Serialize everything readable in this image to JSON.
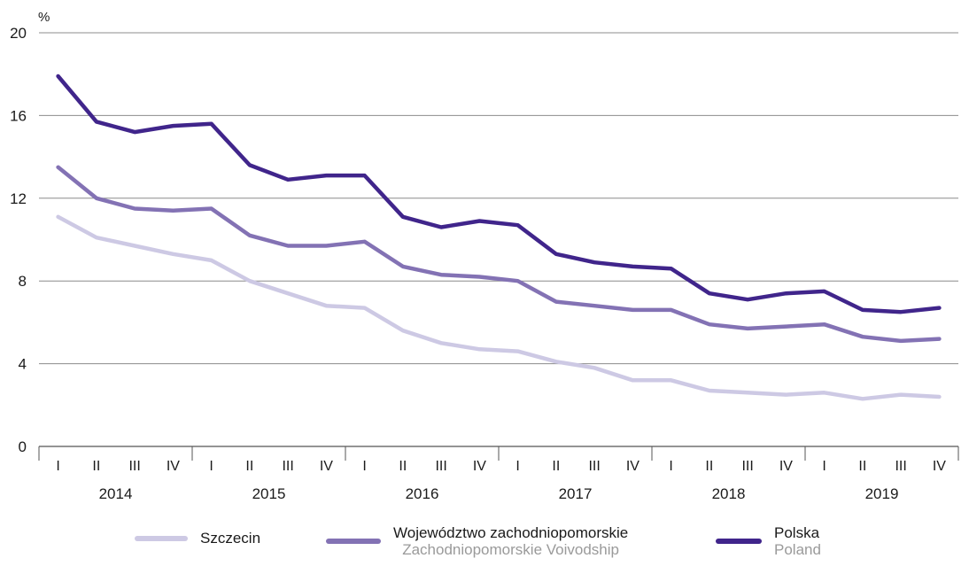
{
  "chart_data": {
    "type": "line",
    "y_unit": "%",
    "ylim": [
      0,
      20
    ],
    "yticks": [
      "0",
      "4",
      "8",
      "12",
      "16",
      "20"
    ],
    "grid": true,
    "legend_position": "bottom",
    "quarters": [
      "I",
      "II",
      "III",
      "IV",
      "I",
      "II",
      "III",
      "IV",
      "I",
      "II",
      "III",
      "IV",
      "I",
      "II",
      "III",
      "IV",
      "I",
      "II",
      "III",
      "IV",
      "I",
      "II",
      "III",
      "IV"
    ],
    "years": [
      "2014",
      "2015",
      "2016",
      "2017",
      "2018",
      "2019"
    ],
    "series": [
      {
        "name": "Szczecin",
        "color": "#cdc9e4",
        "values": [
          11.1,
          10.1,
          9.7,
          9.3,
          9.0,
          8.0,
          7.4,
          6.8,
          6.7,
          5.6,
          5.0,
          4.7,
          4.6,
          4.1,
          3.8,
          3.2,
          3.2,
          2.7,
          2.6,
          2.5,
          2.6,
          2.3,
          2.5,
          2.4
        ]
      },
      {
        "name": "Województwo zachodniopomorskie",
        "name_en": "Zachodniopomorskie Voivodship",
        "color": "#8372b4",
        "values": [
          13.5,
          12.0,
          11.5,
          11.4,
          11.5,
          10.2,
          9.7,
          9.7,
          9.9,
          8.7,
          8.3,
          8.2,
          8.0,
          7.0,
          6.8,
          6.6,
          6.6,
          5.9,
          5.7,
          5.8,
          5.9,
          5.3,
          5.1,
          5.2
        ]
      },
      {
        "name": "Polska",
        "name_en": "Poland",
        "color": "#40258b",
        "values": [
          17.9,
          15.7,
          15.2,
          15.5,
          15.6,
          13.6,
          12.9,
          13.1,
          13.1,
          11.1,
          10.6,
          10.9,
          10.7,
          9.3,
          8.9,
          8.7,
          8.6,
          7.4,
          7.1,
          7.4,
          7.5,
          6.6,
          6.5,
          6.7
        ]
      }
    ]
  }
}
